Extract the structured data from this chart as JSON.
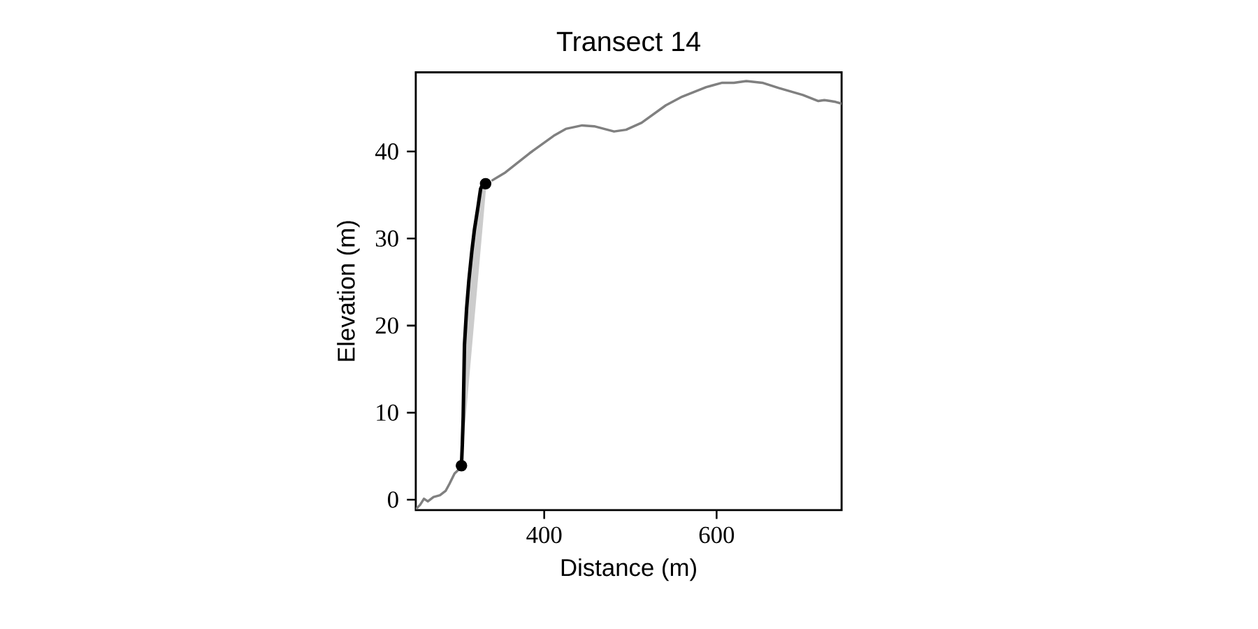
{
  "chart_data": {
    "type": "line",
    "title": "Transect 14",
    "xlabel": "Distance (m)",
    "ylabel": "Elevation (m)",
    "xlim": [
      251,
      745
    ],
    "ylim": [
      -1.2,
      49.1
    ],
    "xticks": [
      400,
      600
    ],
    "yticks": [
      0,
      10,
      20,
      30,
      40
    ],
    "grid": false,
    "series": [
      {
        "color": "#808080",
        "x": [
          252,
          256,
          260.5,
          265,
          271.6,
          279,
          285.6,
          290,
          296,
          301.4,
          318,
          340,
          355,
          383,
          411,
          425,
          444,
          458,
          481,
          495,
          513,
          541,
          560,
          588,
          606.5,
          620,
          634.5,
          653,
          672,
          700,
          718,
          725,
          732,
          738,
          745
        ],
        "values": [
          -1.0,
          -0.6,
          0.1,
          -0.2,
          0.3,
          0.5,
          1.0,
          1.8,
          3.0,
          3.5,
          null,
          36.7,
          37.6,
          39.8,
          41.8,
          42.6,
          43.0,
          42.9,
          42.3,
          42.5,
          43.3,
          45.3,
          46.3,
          47.4,
          47.9,
          47.9,
          48.1,
          47.9,
          47.3,
          46.5,
          45.8,
          45.9,
          45.8,
          45.7,
          45.5
        ]
      },
      {
        "color": "#000000",
        "x": [
          304,
          305,
          306,
          307.5,
          310,
          312.6,
          316,
          319,
          322.8,
          326.2,
          329,
          333
        ],
        "values": [
          3.9,
          6.3,
          9.5,
          17.8,
          22,
          25.2,
          28.5,
          31,
          33.4,
          35.7,
          36.3,
          36.3
        ],
        "lower": [
          3.9,
          5.0,
          6.1,
          7.8,
          10.6,
          13.5,
          17.3,
          20.7,
          24.9,
          28.7,
          31.8,
          36.3
        ],
        "upper": [
          3.9,
          6.3,
          9.5,
          17.8,
          22,
          25.2,
          28.5,
          31,
          33.4,
          35.7,
          36.3,
          36.3
        ]
      },
      {
        "type": "scatter",
        "marker": "circle",
        "color": "#000000",
        "x": [
          304,
          332
        ],
        "values": [
          3.9,
          36.3
        ]
      }
    ]
  }
}
